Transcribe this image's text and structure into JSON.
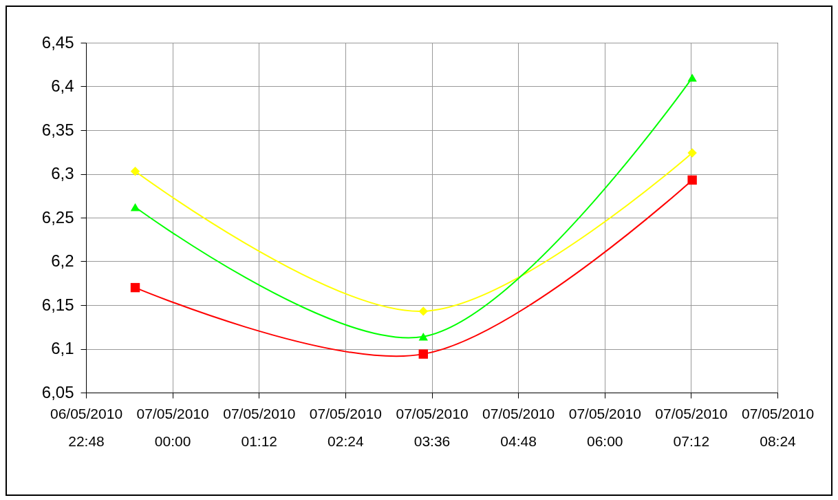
{
  "chart_data": {
    "type": "line",
    "x": [
      "2010-05-06T23:29",
      "2010-05-07T03:29",
      "2010-05-07T07:13"
    ],
    "series": [
      {
        "color": "#ffff00",
        "marker": "diamond",
        "values": [
          6.303,
          6.143,
          6.324
        ]
      },
      {
        "color": "#00ff00",
        "marker": "triangle",
        "values": [
          6.262,
          6.114,
          6.41
        ]
      },
      {
        "color": "#ff0000",
        "marker": "square",
        "values": [
          6.17,
          6.094,
          6.293
        ]
      }
    ],
    "xlim": [
      "2010-05-06T22:48",
      "2010-05-07T08:24"
    ],
    "xticks": [
      {
        "value": "2010-05-06T22:48",
        "label": "06/05/2010 22:48"
      },
      {
        "value": "2010-05-07T00:00",
        "label": "07/05/2010 00:00"
      },
      {
        "value": "2010-05-07T01:12",
        "label": "07/05/2010 01:12"
      },
      {
        "value": "2010-05-07T02:24",
        "label": "07/05/2010 02:24"
      },
      {
        "value": "2010-05-07T03:36",
        "label": "07/05/2010 03:36"
      },
      {
        "value": "2010-05-07T04:48",
        "label": "07/05/2010 04:48"
      },
      {
        "value": "2010-05-07T06:00",
        "label": "07/05/2010 06:00"
      },
      {
        "value": "2010-05-07T07:12",
        "label": "07/05/2010 07:12"
      },
      {
        "value": "2010-05-07T08:24",
        "label": "07/05/2010 08:24"
      }
    ],
    "ylim": [
      6.05,
      6.45
    ],
    "yticks": [
      {
        "value": 6.05,
        "label": "6,05"
      },
      {
        "value": 6.1,
        "label": "6,1"
      },
      {
        "value": 6.15,
        "label": "6,15"
      },
      {
        "value": 6.2,
        "label": "6,2"
      },
      {
        "value": 6.25,
        "label": "6,25"
      },
      {
        "value": 6.3,
        "label": "6,3"
      },
      {
        "value": 6.35,
        "label": "6,35"
      },
      {
        "value": 6.4,
        "label": "6,4"
      },
      {
        "value": 6.45,
        "label": "6,45"
      }
    ],
    "grid": true,
    "line_style": "solid"
  }
}
